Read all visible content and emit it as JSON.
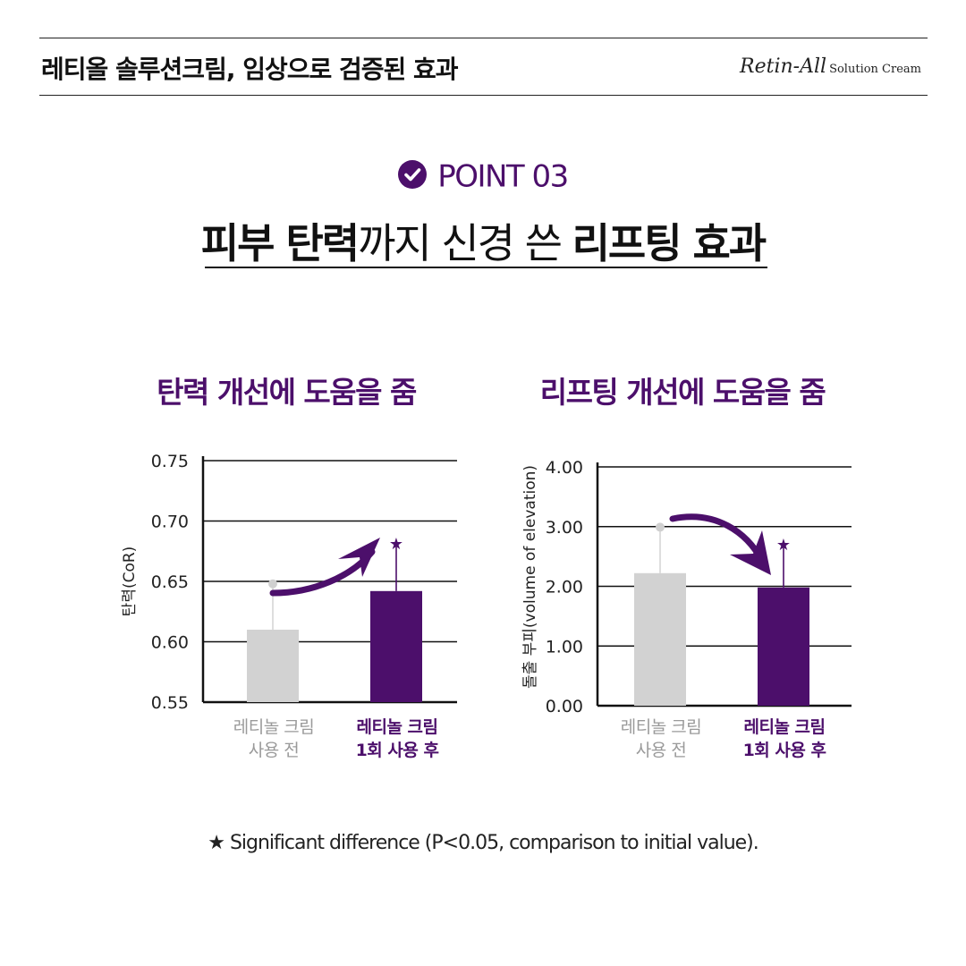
{
  "header": {
    "title": "레티올 솔루션크림, 임상으로 검증된 효과",
    "brand_main": "Retin-All",
    "brand_sub": "Solution Cream"
  },
  "point": {
    "label": "POINT 03",
    "icon": "check-circle-icon"
  },
  "headline": {
    "part1": "피부 탄력",
    "part2": "까지 신경 쓴 ",
    "part3": "리프팅 효과"
  },
  "colors": {
    "accent": "#4c0f6b",
    "before_bar": "#d2d2d2",
    "after_bar": "#4c0f6b",
    "muted_text": "#9a9a9a"
  },
  "chart_data": [
    {
      "type": "bar",
      "title": "탄력 개선에 도움을 줌",
      "ylabel": "탄력(CoR)",
      "ylim": [
        0.55,
        0.75
      ],
      "yticks": [
        "0.75",
        "0.70",
        "0.65",
        "0.60",
        "0.55"
      ],
      "categories": [
        {
          "line1": "레티놀 크림",
          "line2": "사용 전"
        },
        {
          "line1": "레티놀 크림",
          "line2": "1회 사용 후"
        }
      ],
      "values": [
        0.61,
        0.642
      ],
      "error_upper": [
        0.648,
        0.681
      ],
      "significant": [
        false,
        true
      ],
      "grid": true,
      "annotation": "upward arrow from before to after"
    },
    {
      "type": "bar",
      "title": "리프팅 개선에 도움을 줌",
      "ylabel": "돌출 부피(volume of elevation)",
      "ylim": [
        0.0,
        4.0
      ],
      "yticks": [
        "4.00",
        "3.00",
        "2.00",
        "1.00",
        "0.00"
      ],
      "categories": [
        {
          "line1": "레티놀 크림",
          "line2": "사용 전"
        },
        {
          "line1": "레티놀 크림",
          "line2": "1회 사용 후"
        }
      ],
      "values": [
        2.22,
        1.98
      ],
      "error_upper": [
        2.99,
        2.7
      ],
      "significant": [
        false,
        true
      ],
      "grid": true,
      "annotation": "downward arrow from before to after"
    }
  ],
  "footnote": "★ Significant difference (P<0.05, comparison to initial value)."
}
